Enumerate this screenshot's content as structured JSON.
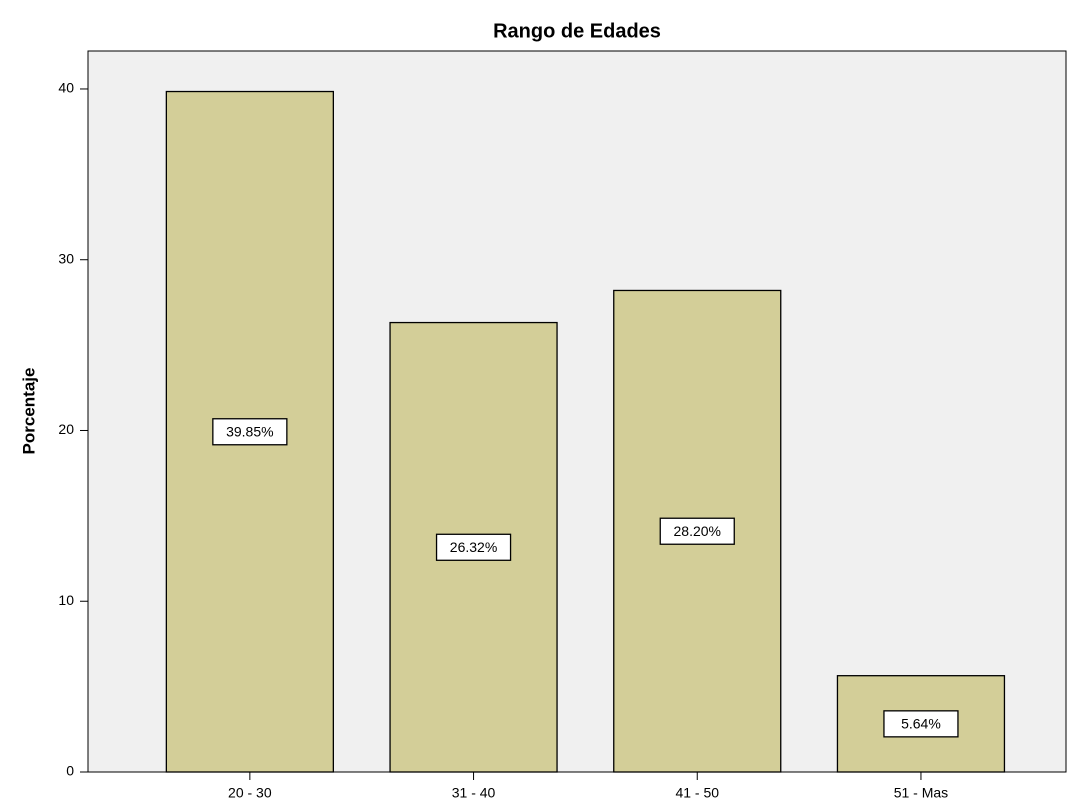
{
  "chart_data": {
    "type": "bar",
    "title": "Rango de Edades",
    "y_label": "Porcentaje",
    "categories": [
      "20 - 30",
      "31 - 40",
      "41 - 50",
      "51 - Mas"
    ],
    "values": [
      39.85,
      26.32,
      28.2,
      5.64
    ],
    "value_labels": [
      "39.85%",
      "26.32%",
      "28.20%",
      "5.64%"
    ],
    "color": "#d3ce98",
    "ylim": [
      0,
      42.2
    ],
    "yticks": [
      0,
      10,
      20,
      30,
      40
    ],
    "grid": false
  }
}
